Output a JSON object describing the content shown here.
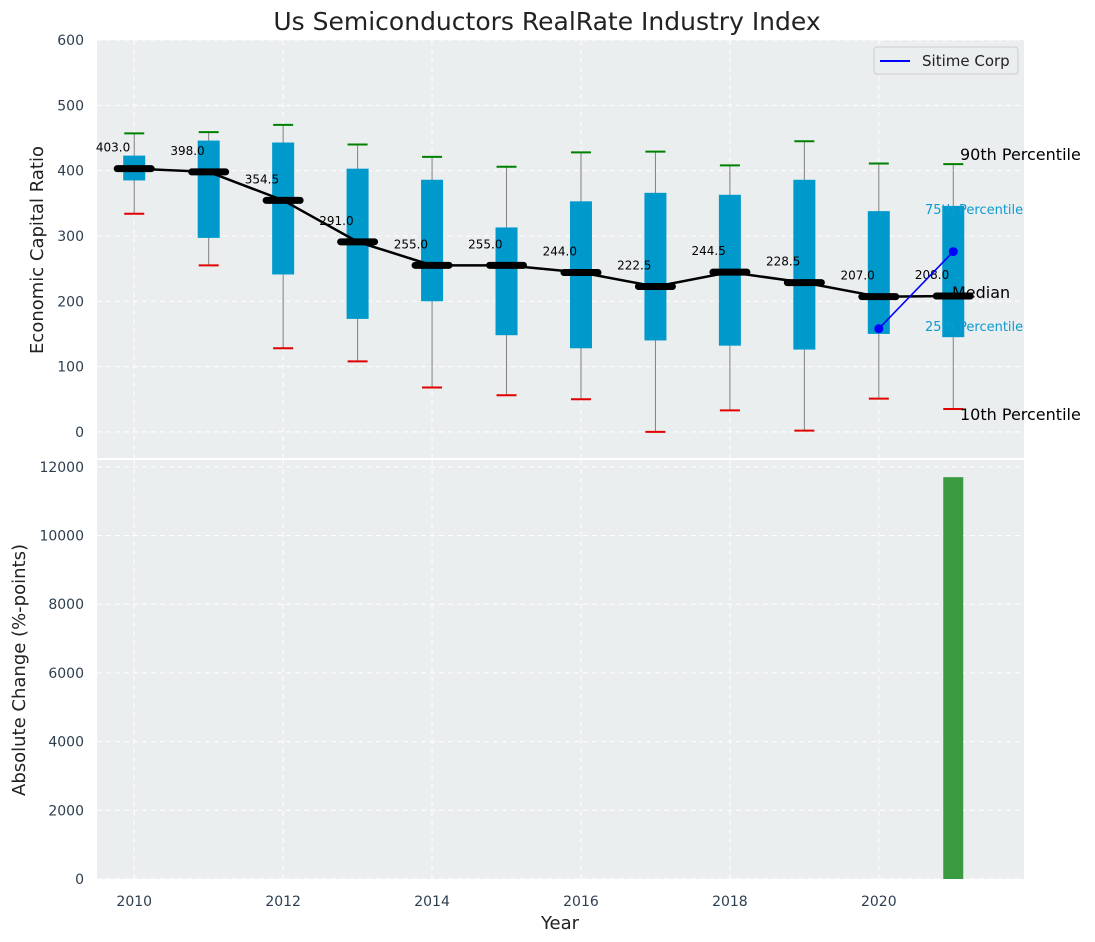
{
  "chart_data": [
    {
      "type": "box",
      "title": "Us Semiconductors RealRate Industry Index",
      "ylabel": "Economic Capital Ratio",
      "xlabel": "",
      "ylim": [
        -40,
        600
      ],
      "xlim": [
        2009.5,
        2021.95
      ],
      "yticks": [
        0,
        100,
        200,
        300,
        400,
        500,
        600
      ],
      "grid": true,
      "years": [
        2010,
        2011,
        2012,
        2013,
        2014,
        2015,
        2016,
        2017,
        2018,
        2019,
        2020,
        2021
      ],
      "p10": [
        334,
        255,
        128,
        108,
        68,
        56,
        50,
        0,
        33,
        2,
        51,
        35
      ],
      "p25": [
        385,
        297,
        241,
        173,
        200,
        148,
        128,
        140,
        132,
        126,
        150,
        145
      ],
      "median": [
        403.0,
        398.0,
        354.5,
        291.0,
        255.0,
        255.0,
        244.0,
        222.5,
        244.5,
        228.5,
        207.0,
        208.0
      ],
      "median_labels": [
        "403.0",
        "398.0",
        "354.5",
        "291.0",
        "255.0",
        "255.0",
        "244.0",
        "222.5",
        "244.5",
        "228.5",
        "207.0",
        "208.0"
      ],
      "p75": [
        423,
        446,
        443,
        403,
        386,
        313,
        353,
        366,
        363,
        386,
        338,
        346
      ],
      "p90": [
        457,
        459,
        470,
        440,
        421,
        406,
        428,
        429,
        408,
        445,
        411,
        410
      ],
      "annotations": {
        "p90": "90th Percentile",
        "p75": "75th Percentile",
        "median": "Median",
        "p25": "25th Percentile",
        "p10": "10th Percentile"
      },
      "series": [
        {
          "name": "Sitime Corp",
          "x": [
            2020,
            2021
          ],
          "values": [
            158,
            276
          ],
          "color": "#0000ff"
        }
      ],
      "legend": {
        "position": "top-right",
        "entries": [
          "Sitime Corp"
        ]
      },
      "colors": {
        "box": "#0099cc",
        "median_line": "#000000",
        "p90_cap": "#008000",
        "p10_cap": "#e00000",
        "whisker": "#808080"
      }
    },
    {
      "type": "bar",
      "ylabel": "Absolute Change (%-points)",
      "xlabel": "Year",
      "ylim": [
        0,
        12200
      ],
      "yticks": [
        0,
        2000,
        4000,
        6000,
        8000,
        10000,
        12000
      ],
      "xticks": [
        2010,
        2012,
        2014,
        2016,
        2018,
        2020
      ],
      "grid": true,
      "x": [
        2021
      ],
      "values": [
        11700
      ],
      "color": "#3a9a3f"
    }
  ]
}
